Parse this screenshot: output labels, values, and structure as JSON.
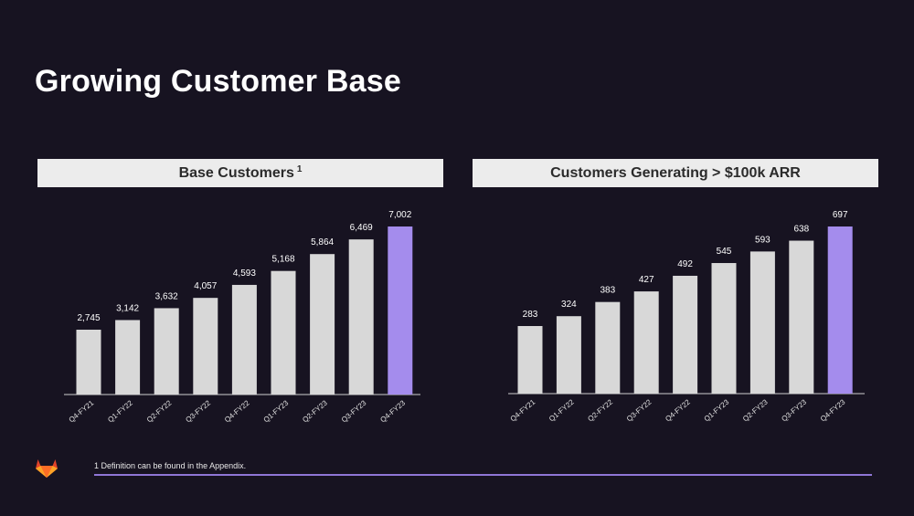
{
  "slide": {
    "title": "Growing Customer Base",
    "footnote": "1 Definition can be found in the Appendix.",
    "colors": {
      "background": "#171321",
      "bar": "#d8d8d8",
      "highlight_bar": "#a48ced",
      "header_bg": "#ececec",
      "accent_rule": "#8f76d6"
    },
    "logo_icon": "gitlab-tanuki-icon"
  },
  "chart_data": [
    {
      "type": "bar",
      "title": "Base Customers",
      "title_superscript": "1",
      "categories": [
        "Q4-FY21",
        "Q1-FY22",
        "Q2-FY22",
        "Q3-FY22",
        "Q4-FY22",
        "Q1-FY23",
        "Q2-FY23",
        "Q3-FY23",
        "Q4-FY23"
      ],
      "values": [
        2745,
        3142,
        3632,
        4057,
        4593,
        5168,
        5864,
        6469,
        7002
      ],
      "value_labels": [
        "2,745",
        "3,142",
        "3,632",
        "4,057",
        "4,593",
        "5,168",
        "5,864",
        "6,469",
        "7,002"
      ],
      "highlight_index": 8,
      "xlabel": "",
      "ylabel": "",
      "ylim": [
        0,
        7002
      ],
      "grid": false
    },
    {
      "type": "bar",
      "title": "Customers Generating > $100k ARR",
      "categories": [
        "Q4-FY21",
        "Q1-FY22",
        "Q2-FY22",
        "Q3-FY22",
        "Q4-FY22",
        "Q1-FY23",
        "Q2-FY23",
        "Q3-FY23",
        "Q4-FY23"
      ],
      "values": [
        283,
        324,
        383,
        427,
        492,
        545,
        593,
        638,
        697
      ],
      "value_labels": [
        "283",
        "324",
        "383",
        "427",
        "492",
        "545",
        "593",
        "638",
        "697"
      ],
      "highlight_index": 8,
      "xlabel": "",
      "ylabel": "",
      "ylim": [
        0,
        697
      ],
      "grid": false
    }
  ]
}
